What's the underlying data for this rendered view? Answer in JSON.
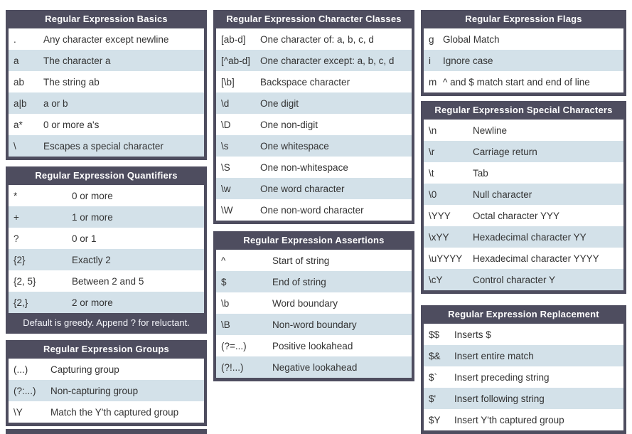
{
  "colors": {
    "table_header_bg": "#4e4d5f",
    "row_bg": "#ffffff",
    "row_alt_bg": "#d3e1e9",
    "header_text": "#ffffff",
    "row_text": "#333333",
    "page_bg": "#ffffff"
  },
  "columns": [
    {
      "name": "left",
      "tables": [
        {
          "id": "basics",
          "title": "Regular Expression Basics",
          "rows": [
            {
              "pattern": ".",
              "description": "Any character except newline"
            },
            {
              "pattern": "a",
              "description": "The character a"
            },
            {
              "pattern": "ab",
              "description": "The string ab"
            },
            {
              "pattern": "a|b",
              "description": "a or b"
            },
            {
              "pattern": "a*",
              "description": "0 or more a's"
            },
            {
              "pattern": "\\",
              "description": "Escapes a special character"
            }
          ]
        },
        {
          "id": "quantifiers",
          "title": "Regular Expression Quantifiers",
          "rows": [
            {
              "pattern": "*",
              "description": "0 or more"
            },
            {
              "pattern": "+",
              "description": "1 or more"
            },
            {
              "pattern": "?",
              "description": "0 or 1"
            },
            {
              "pattern": "{2}",
              "description": "Exactly 2"
            },
            {
              "pattern": "{2, 5}",
              "description": "Between 2 and 5"
            },
            {
              "pattern": "{2,}",
              "description": "2 or more"
            }
          ],
          "footer": "Default is greedy. Append ? for reluctant."
        },
        {
          "id": "groups",
          "title": "Regular Expression Groups",
          "rows": [
            {
              "pattern": "(...)",
              "description": "Capturing group"
            },
            {
              "pattern": "(?:...)",
              "description": "Non-capturing group"
            },
            {
              "pattern": "\\Y",
              "description": "Match the Y'th captured group"
            }
          ]
        },
        {
          "id": "partial",
          "title": "",
          "rows": [],
          "partial": true
        }
      ]
    },
    {
      "name": "middle",
      "tables": [
        {
          "id": "character-classes",
          "title": "Regular Expression Character Classes",
          "rows": [
            {
              "pattern": "[ab-d]",
              "description": "One character of: a, b, c, d"
            },
            {
              "pattern": "[^ab-d]",
              "description": "One character except: a, b, c, d"
            },
            {
              "pattern": "[\\b]",
              "description": "Backspace character"
            },
            {
              "pattern": "\\d",
              "description": "One digit"
            },
            {
              "pattern": "\\D",
              "description": "One non-digit"
            },
            {
              "pattern": "\\s",
              "description": "One whitespace"
            },
            {
              "pattern": "\\S",
              "description": "One non-whitespace"
            },
            {
              "pattern": "\\w",
              "description": "One word character"
            },
            {
              "pattern": "\\W",
              "description": "One non-word character"
            }
          ]
        },
        {
          "id": "assertions",
          "title": "Regular Expression Assertions",
          "rows": [
            {
              "pattern": "^",
              "description": "Start of string"
            },
            {
              "pattern": "$",
              "description": "End of string"
            },
            {
              "pattern": "\\b",
              "description": "Word boundary"
            },
            {
              "pattern": "\\B",
              "description": "Non-word boundary"
            },
            {
              "pattern": "(?=...)",
              "description": "Positive lookahead"
            },
            {
              "pattern": "(?!...)",
              "description": "Negative lookahead"
            }
          ]
        }
      ]
    },
    {
      "name": "right",
      "tables": [
        {
          "id": "flags",
          "title": "Regular Expression Flags",
          "rows": [
            {
              "pattern": "g",
              "description": "Global Match"
            },
            {
              "pattern": "i",
              "description": "Ignore case"
            },
            {
              "pattern": "m",
              "description": "^ and $ match start and end of line"
            }
          ]
        },
        {
          "id": "special-characters",
          "title": "Regular Expression Special Characters",
          "rows": [
            {
              "pattern": "\\n",
              "description": "Newline"
            },
            {
              "pattern": "\\r",
              "description": "Carriage return"
            },
            {
              "pattern": "\\t",
              "description": "Tab"
            },
            {
              "pattern": "\\0",
              "description": "Null character"
            },
            {
              "pattern": "\\YYY",
              "description": "Octal character YYY"
            },
            {
              "pattern": "\\xYY",
              "description": "Hexadecimal character YY"
            },
            {
              "pattern": "\\uYYYY",
              "description": "Hexadecimal character YYYY"
            },
            {
              "pattern": "\\cY",
              "description": "Control character Y"
            }
          ]
        },
        {
          "id": "replacement",
          "title": "Regular Expression Replacement",
          "rows": [
            {
              "pattern": "$$",
              "description": "Inserts $"
            },
            {
              "pattern": "$&",
              "description": "Insert entire match"
            },
            {
              "pattern": "$`",
              "description": "Insert preceding string"
            },
            {
              "pattern": "$'",
              "description": "Insert following string"
            },
            {
              "pattern": "$Y",
              "description": "Insert Y'th captured group"
            }
          ]
        }
      ]
    }
  ]
}
